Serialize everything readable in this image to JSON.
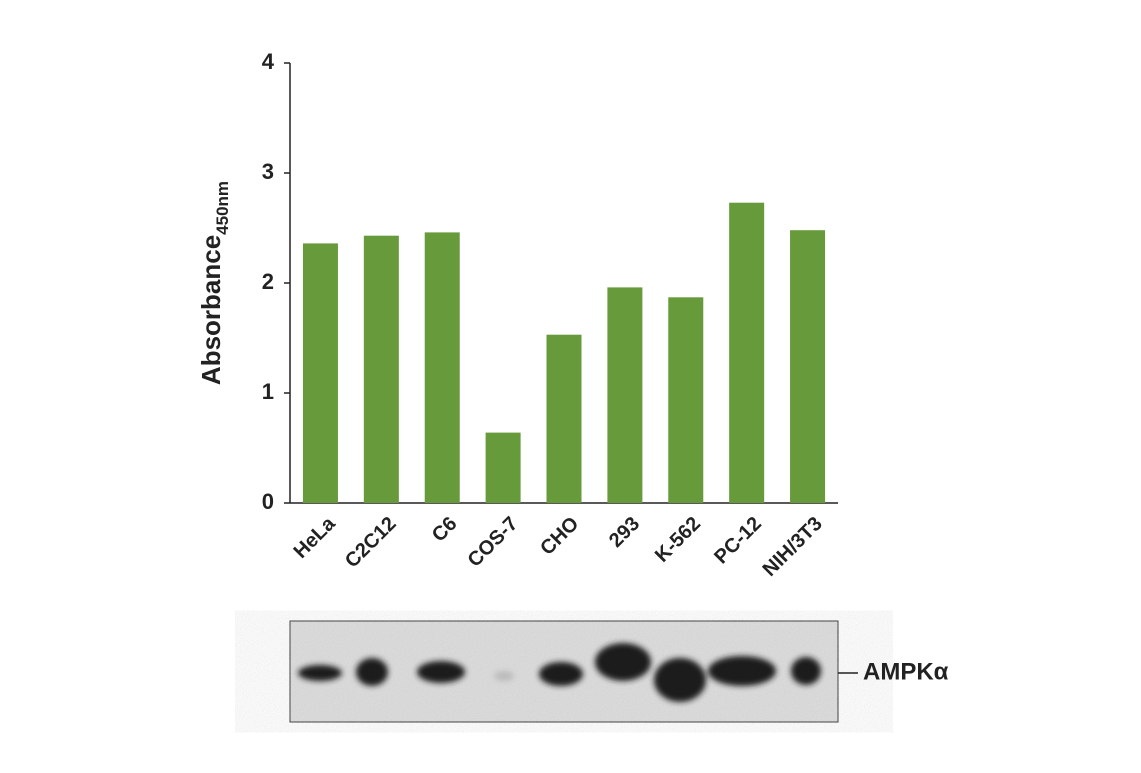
{
  "chart_data": {
    "type": "bar",
    "y_label": "Absorbance",
    "y_label_subscript": "450nm",
    "categories": [
      "HeLa",
      "C2C12",
      "C6",
      "COS-7",
      "CHO",
      "293",
      "K-562",
      "PC-12",
      "NIH/3T3"
    ],
    "values": [
      2.36,
      2.43,
      2.46,
      0.64,
      1.53,
      1.96,
      1.87,
      2.73,
      2.48
    ],
    "color": "#669a3a",
    "ylim": [
      0,
      4
    ],
    "yticks": [
      0,
      1,
      2,
      3,
      4
    ],
    "blot_label": "AMPKα"
  }
}
